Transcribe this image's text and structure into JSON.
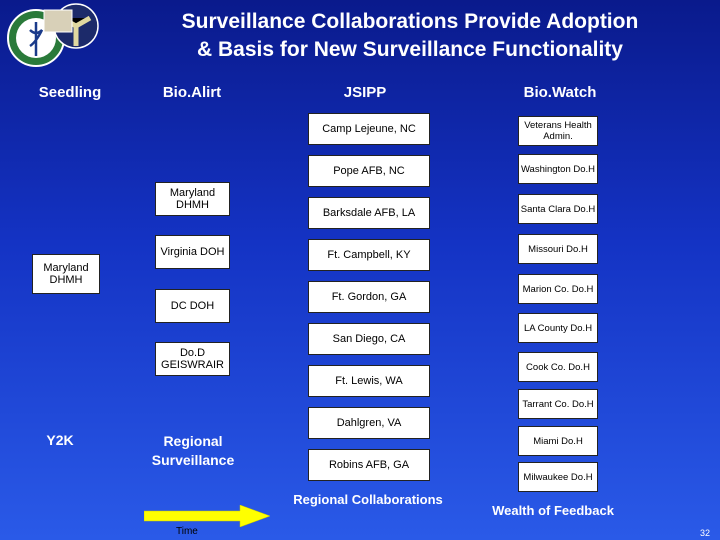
{
  "title_line1": "Surveillance Collaborations Provide Adoption",
  "title_line2": "& Basis for New Surveillance Functionality",
  "columns": {
    "seedling": "Seedling",
    "bioalirt": "Bio.Alirt",
    "jsipp": "JSIPP",
    "biowatch": "Bio.Watch"
  },
  "seedling_box": "Maryland DHMH",
  "bioalirt_boxes": [
    "Maryland DHMH",
    "Virginia DOH",
    "DC DOH",
    "Do.D GEISWRAIR"
  ],
  "jsipp_boxes": [
    "Camp Lejeune, NC",
    "Pope AFB, NC",
    "Barksdale AFB, LA",
    "Ft. Campbell, KY",
    "Ft. Gordon, GA",
    "San Diego, CA",
    "Ft. Lewis, WA",
    "Dahlgren, VA",
    "Robins AFB, GA"
  ],
  "biowatch_boxes": [
    "Veterans Health Admin.",
    "Washington Do.H",
    "Santa Clara Do.H",
    "Missouri Do.H",
    "Marion Co. Do.H",
    "LA County Do.H",
    "Cook Co. Do.H",
    "Tarrant Co. Do.H",
    "Miami Do.H",
    "Milwaukee Do.H"
  ],
  "y2k": "Y2K",
  "regional_surveillance": "Regional Surveillance",
  "regional_collaborations": "Regional Collaborations",
  "wealth_of_feedback": "Wealth of Feedback",
  "time": "Time",
  "page_number": "32",
  "colors": {
    "background_top": "#0a1a8c",
    "background_bottom": "#2a5ae8",
    "arrow": "#ffff00"
  }
}
